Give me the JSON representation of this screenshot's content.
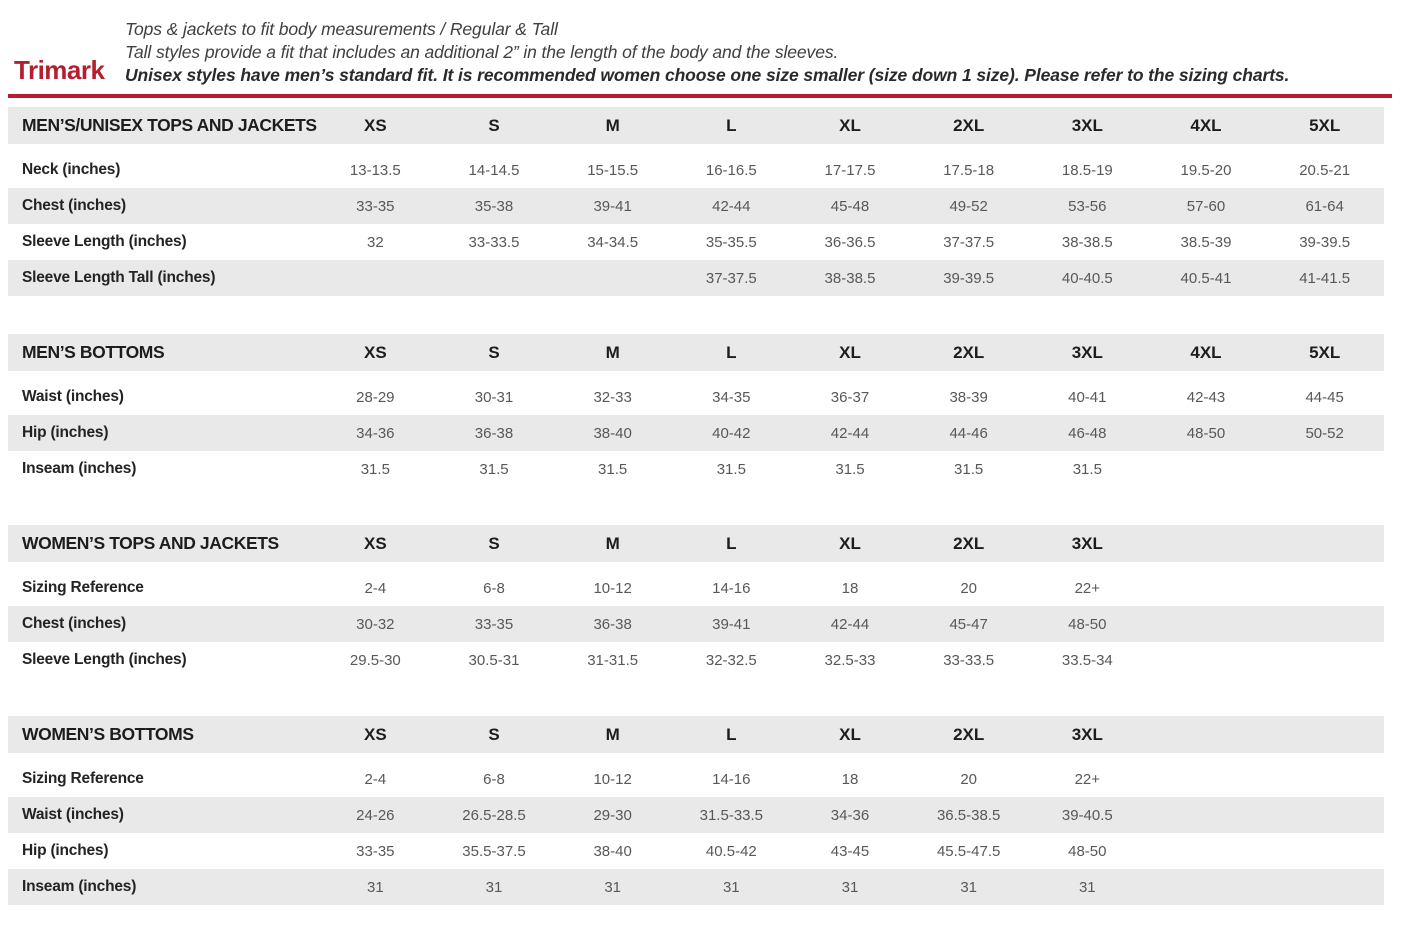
{
  "brand": {
    "logo": "Trimark",
    "accent_color": "#b51e2e"
  },
  "intro": {
    "line1": "Tops & jackets to fit body measurements / Regular & Tall",
    "line2": "Tall styles provide a fit that includes an additional 2” in the length of the body and the sleeves.",
    "line3": "Unisex styles have men’s standard fit. It is recommended women choose one size smaller (size down 1 size).  Please refer to the sizing charts."
  },
  "chart_data": {
    "type": "table",
    "tables_note": "Sizing charts; values are inches unless noted. Empty string = blank cell in source."
  },
  "tables": [
    {
      "title": "MEN’S/UNISEX TOPS AND JACKETS",
      "columns": [
        "XS",
        "S",
        "M",
        "L",
        "XL",
        "2XL",
        "3XL",
        "4XL",
        "5XL"
      ],
      "rows": [
        {
          "label": "Neck (inches)",
          "values": [
            "13-13.5",
            "14-14.5",
            "15-15.5",
            "16-16.5",
            "17-17.5",
            "17.5-18",
            "18.5-19",
            "19.5-20",
            "20.5-21"
          ]
        },
        {
          "label": "Chest (inches)",
          "values": [
            "33-35",
            "35-38",
            "39-41",
            "42-44",
            "45-48",
            "49-52",
            "53-56",
            "57-60",
            "61-64"
          ]
        },
        {
          "label": "Sleeve Length (inches)",
          "values": [
            "32",
            "33-33.5",
            "34-34.5",
            "35-35.5",
            "36-36.5",
            "37-37.5",
            "38-38.5",
            "38.5-39",
            "39-39.5"
          ]
        },
        {
          "label": "Sleeve Length Tall (inches)",
          "values": [
            "",
            "",
            "",
            "37-37.5",
            "38-38.5",
            "39-39.5",
            "40-40.5",
            "40.5-41",
            "41-41.5"
          ]
        }
      ]
    },
    {
      "title": "MEN’S BOTTOMS",
      "columns": [
        "XS",
        "S",
        "M",
        "L",
        "XL",
        "2XL",
        "3XL",
        "4XL",
        "5XL"
      ],
      "rows": [
        {
          "label": "Waist (inches)",
          "values": [
            "28-29",
            "30-31",
            "32-33",
            "34-35",
            "36-37",
            "38-39",
            "40-41",
            "42-43",
            "44-45"
          ]
        },
        {
          "label": "Hip (inches)",
          "values": [
            "34-36",
            "36-38",
            "38-40",
            "40-42",
            "42-44",
            "44-46",
            "46-48",
            "48-50",
            "50-52"
          ]
        },
        {
          "label": "Inseam (inches)",
          "values": [
            "31.5",
            "31.5",
            "31.5",
            "31.5",
            "31.5",
            "31.5",
            "31.5",
            "",
            ""
          ]
        }
      ]
    },
    {
      "title": "WOMEN’S TOPS AND JACKETS",
      "columns": [
        "XS",
        "S",
        "M",
        "L",
        "XL",
        "2XL",
        "3XL"
      ],
      "rows": [
        {
          "label": "Sizing Reference",
          "values": [
            "2-4",
            "6-8",
            "10-12",
            "14-16",
            "18",
            "20",
            "22+"
          ]
        },
        {
          "label": "Chest (inches)",
          "values": [
            "30-32",
            "33-35",
            "36-38",
            "39-41",
            "42-44",
            "45-47",
            "48-50"
          ]
        },
        {
          "label": "Sleeve Length (inches)",
          "values": [
            "29.5-30",
            "30.5-31",
            "31-31.5",
            "32-32.5",
            "32.5-33",
            "33-33.5",
            "33.5-34"
          ]
        }
      ]
    },
    {
      "title": "WOMEN’S BOTTOMS",
      "columns": [
        "XS",
        "S",
        "M",
        "L",
        "XL",
        "2XL",
        "3XL"
      ],
      "rows": [
        {
          "label": "Sizing Reference",
          "values": [
            "2-4",
            "6-8",
            "10-12",
            "14-16",
            "18",
            "20",
            "22+"
          ]
        },
        {
          "label": "Waist (inches)",
          "values": [
            "24-26",
            "26.5-28.5",
            "29-30",
            "31.5-33.5",
            "34-36",
            "36.5-38.5",
            "39-40.5"
          ]
        },
        {
          "label": "Hip (inches)",
          "values": [
            "33-35",
            "35.5-37.5",
            "38-40",
            "40.5-42",
            "43-45",
            "45.5-47.5",
            "48-50"
          ]
        },
        {
          "label": "Inseam (inches)",
          "values": [
            "31",
            "31",
            "31",
            "31",
            "31",
            "31",
            "31"
          ]
        }
      ]
    }
  ]
}
